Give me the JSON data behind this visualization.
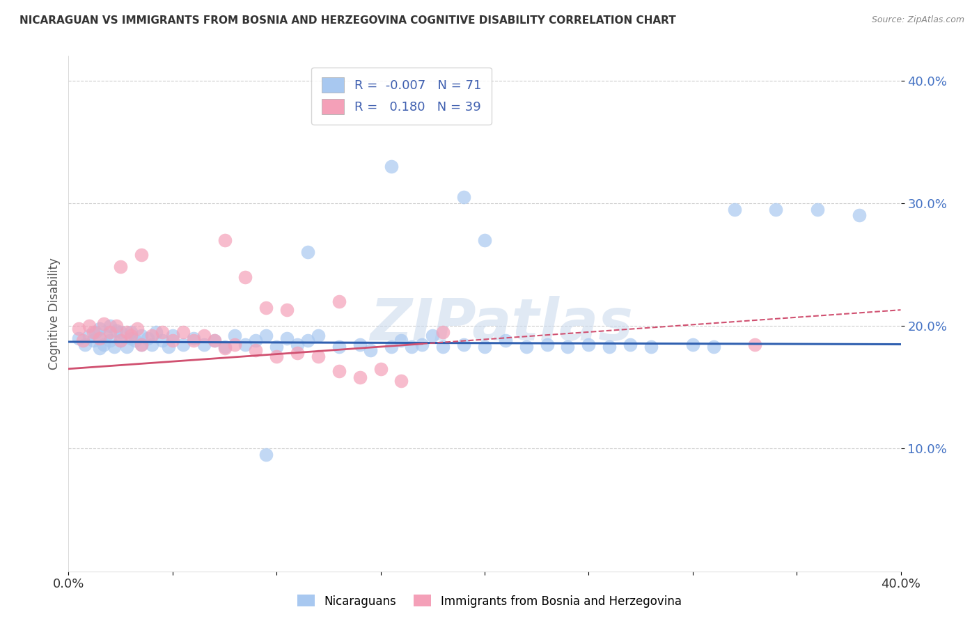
{
  "title": "NICARAGUAN VS IMMIGRANTS FROM BOSNIA AND HERZEGOVINA COGNITIVE DISABILITY CORRELATION CHART",
  "source": "Source: ZipAtlas.com",
  "ylabel": "Cognitive Disability",
  "xlim": [
    0.0,
    0.4
  ],
  "ylim": [
    0.0,
    0.42
  ],
  "yticks": [
    0.1,
    0.2,
    0.3,
    0.4
  ],
  "ytick_labels": [
    "10.0%",
    "20.0%",
    "30.0%",
    "40.0%"
  ],
  "xtick_labels": [
    "0.0%",
    "",
    "",
    "",
    "",
    "",
    "",
    "",
    "40.0%"
  ],
  "r_blue": -0.007,
  "n_blue": 71,
  "r_pink": 0.18,
  "n_pink": 39,
  "blue_color": "#a8c8f0",
  "pink_color": "#f4a0b8",
  "blue_line_color": "#3060b0",
  "pink_line_color": "#d05070",
  "legend_blue_label": "Nicaraguans",
  "legend_pink_label": "Immigrants from Bosnia and Herzegovina",
  "watermark": "ZIPatlas",
  "blue_scatter_x": [
    0.005,
    0.008,
    0.01,
    0.012,
    0.013,
    0.015,
    0.015,
    0.017,
    0.018,
    0.02,
    0.02,
    0.022,
    0.023,
    0.025,
    0.025,
    0.028,
    0.03,
    0.03,
    0.032,
    0.035,
    0.035,
    0.038,
    0.04,
    0.042,
    0.045,
    0.048,
    0.05,
    0.055,
    0.06,
    0.065,
    0.07,
    0.075,
    0.08,
    0.085,
    0.09,
    0.095,
    0.1,
    0.105,
    0.11,
    0.115,
    0.12,
    0.13,
    0.14,
    0.145,
    0.155,
    0.16,
    0.165,
    0.17,
    0.175,
    0.18,
    0.19,
    0.2,
    0.21,
    0.22,
    0.23,
    0.24,
    0.25,
    0.26,
    0.27,
    0.28,
    0.115,
    0.095,
    0.3,
    0.31,
    0.32,
    0.34,
    0.36,
    0.38,
    0.155,
    0.19,
    0.2
  ],
  "blue_scatter_y": [
    0.19,
    0.185,
    0.192,
    0.188,
    0.195,
    0.182,
    0.198,
    0.185,
    0.192,
    0.188,
    0.2,
    0.183,
    0.196,
    0.188,
    0.195,
    0.183,
    0.19,
    0.195,
    0.188,
    0.192,
    0.185,
    0.19,
    0.185,
    0.195,
    0.188,
    0.183,
    0.192,
    0.185,
    0.19,
    0.185,
    0.188,
    0.183,
    0.192,
    0.185,
    0.188,
    0.192,
    0.183,
    0.19,
    0.185,
    0.188,
    0.192,
    0.183,
    0.185,
    0.18,
    0.183,
    0.188,
    0.183,
    0.185,
    0.192,
    0.183,
    0.185,
    0.183,
    0.188,
    0.183,
    0.185,
    0.183,
    0.185,
    0.183,
    0.185,
    0.183,
    0.26,
    0.095,
    0.185,
    0.183,
    0.295,
    0.295,
    0.295,
    0.29,
    0.33,
    0.305,
    0.27
  ],
  "pink_scatter_x": [
    0.005,
    0.007,
    0.01,
    0.012,
    0.015,
    0.017,
    0.02,
    0.023,
    0.025,
    0.028,
    0.03,
    0.033,
    0.035,
    0.04,
    0.045,
    0.05,
    0.055,
    0.06,
    0.065,
    0.07,
    0.075,
    0.08,
    0.09,
    0.1,
    0.11,
    0.12,
    0.13,
    0.14,
    0.15,
    0.16,
    0.025,
    0.035,
    0.075,
    0.085,
    0.33,
    0.18,
    0.13,
    0.105,
    0.095
  ],
  "pink_scatter_y": [
    0.198,
    0.188,
    0.2,
    0.195,
    0.19,
    0.202,
    0.195,
    0.2,
    0.188,
    0.195,
    0.192,
    0.198,
    0.185,
    0.192,
    0.195,
    0.188,
    0.195,
    0.188,
    0.192,
    0.188,
    0.182,
    0.185,
    0.18,
    0.175,
    0.178,
    0.175,
    0.163,
    0.158,
    0.165,
    0.155,
    0.248,
    0.258,
    0.27,
    0.24,
    0.185,
    0.195,
    0.22,
    0.213,
    0.215
  ]
}
